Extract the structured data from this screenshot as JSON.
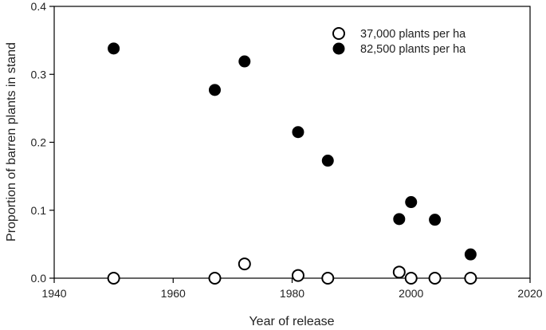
{
  "chart_data": {
    "type": "scatter",
    "title": "",
    "xlabel": "Year of release",
    "ylabel": "Proportion of barren plants in stand",
    "xlim": [
      1940,
      2020
    ],
    "ylim": [
      0.0,
      0.4
    ],
    "xticks": [
      1940,
      1960,
      1980,
      2000,
      2020
    ],
    "yticks": [
      0.0,
      0.1,
      0.2,
      0.3,
      0.4
    ],
    "x_tick_labels": [
      "1940",
      "1960",
      "1980",
      "2000",
      "2020"
    ],
    "y_tick_labels": [
      "0.0",
      "0.1",
      "0.2",
      "0.3",
      "0.4"
    ],
    "grid": false,
    "legend_position": "top-right",
    "series": [
      {
        "name": "37,000 plants per ha",
        "marker": "open-circle",
        "color": "#000000",
        "points": [
          {
            "x": 1950,
            "y": 0.0
          },
          {
            "x": 1967,
            "y": 0.0
          },
          {
            "x": 1972,
            "y": 0.021
          },
          {
            "x": 1981,
            "y": 0.004
          },
          {
            "x": 1986,
            "y": 0.0
          },
          {
            "x": 1998,
            "y": 0.009
          },
          {
            "x": 2000,
            "y": 0.0
          },
          {
            "x": 2004,
            "y": 0.0
          },
          {
            "x": 2010,
            "y": 0.0
          }
        ]
      },
      {
        "name": "82,500 plants per ha",
        "marker": "filled-circle",
        "color": "#000000",
        "points": [
          {
            "x": 1950,
            "y": 0.338
          },
          {
            "x": 1967,
            "y": 0.277
          },
          {
            "x": 1972,
            "y": 0.319
          },
          {
            "x": 1981,
            "y": 0.215
          },
          {
            "x": 1986,
            "y": 0.173
          },
          {
            "x": 1998,
            "y": 0.087
          },
          {
            "x": 2000,
            "y": 0.112
          },
          {
            "x": 2004,
            "y": 0.086
          },
          {
            "x": 2010,
            "y": 0.035
          }
        ]
      }
    ]
  }
}
